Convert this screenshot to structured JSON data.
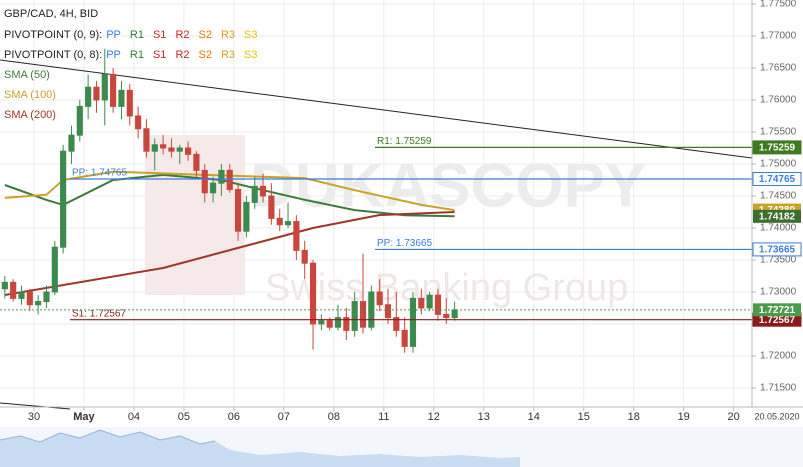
{
  "chart_data": {
    "type": "candlestick",
    "title": "GBP/CAD, 4H, BID",
    "watermark": {
      "brand": "DUKASCOPY",
      "tagline": "Swiss Banking Group"
    },
    "pivot_legend": [
      {
        "name": "PIVOTPOINT (0, 9):",
        "items": [
          {
            "name": "PP",
            "color": "#3b7dd8"
          },
          {
            "name": "R1",
            "color": "#2e7d32"
          },
          {
            "name": "S1",
            "color": "#c62828"
          },
          {
            "name": "R2",
            "color": "#c62828"
          },
          {
            "name": "S2",
            "color": "#e07b00"
          },
          {
            "name": "R3",
            "color": "#d4a017"
          },
          {
            "name": "S3",
            "color": "#e6c200"
          }
        ]
      },
      {
        "name": "PIVOTPOINT (0, 8):",
        "items": [
          {
            "name": "PP",
            "color": "#3b7dd8"
          },
          {
            "name": "R1",
            "color": "#2e7d32"
          },
          {
            "name": "S1",
            "color": "#c62828"
          },
          {
            "name": "R2",
            "color": "#c62828"
          },
          {
            "name": "S2",
            "color": "#e07b00"
          },
          {
            "name": "R3",
            "color": "#d4a017"
          },
          {
            "name": "S3",
            "color": "#e6c200"
          }
        ]
      }
    ],
    "up_color": "#3c8a4e",
    "down_color": "#c9463d",
    "ohlc": [
      [
        1.7305,
        1.7325,
        1.729,
        1.7315
      ],
      [
        1.7315,
        1.732,
        1.7285,
        1.729
      ],
      [
        1.729,
        1.731,
        1.728,
        1.73
      ],
      [
        1.73,
        1.7305,
        1.727,
        1.728
      ],
      [
        1.728,
        1.7295,
        1.7265,
        1.7285
      ],
      [
        1.7285,
        1.731,
        1.7275,
        1.73
      ],
      [
        1.73,
        1.738,
        1.7295,
        1.737
      ],
      [
        1.737,
        1.753,
        1.736,
        1.752
      ],
      [
        1.752,
        1.756,
        1.75,
        1.7545
      ],
      [
        1.7545,
        1.76,
        1.7535,
        1.759
      ],
      [
        1.759,
        1.764,
        1.757,
        1.762
      ],
      [
        1.762,
        1.763,
        1.758,
        1.76
      ],
      [
        1.76,
        1.768,
        1.756,
        1.764
      ],
      [
        1.764,
        1.765,
        1.758,
        1.759
      ],
      [
        1.759,
        1.763,
        1.757,
        1.7615
      ],
      [
        1.7615,
        1.7625,
        1.756,
        1.7575
      ],
      [
        1.7575,
        1.759,
        1.754,
        1.7555
      ],
      [
        1.7555,
        1.757,
        1.751,
        1.752
      ],
      [
        1.752,
        1.754,
        1.749,
        1.753
      ],
      [
        1.753,
        1.7545,
        1.7515,
        1.7525
      ],
      [
        1.7525,
        1.754,
        1.751,
        1.752
      ],
      [
        1.752,
        1.753,
        1.75,
        1.7525
      ],
      [
        1.7525,
        1.7535,
        1.7505,
        1.7515
      ],
      [
        1.7515,
        1.752,
        1.748,
        1.749
      ],
      [
        1.749,
        1.75,
        1.744,
        1.7455
      ],
      [
        1.7455,
        1.748,
        1.744,
        1.747
      ],
      [
        1.747,
        1.75,
        1.745,
        1.749
      ],
      [
        1.749,
        1.75,
        1.7455,
        1.746
      ],
      [
        1.746,
        1.747,
        1.738,
        1.7395
      ],
      [
        1.7395,
        1.745,
        1.7385,
        1.744
      ],
      [
        1.744,
        1.748,
        1.743,
        1.7465
      ],
      [
        1.7465,
        1.7485,
        1.744,
        1.745
      ],
      [
        1.745,
        1.747,
        1.7405,
        1.7415
      ],
      [
        1.7415,
        1.743,
        1.7395,
        1.7405
      ],
      [
        1.7405,
        1.744,
        1.74,
        1.741
      ],
      [
        1.741,
        1.742,
        1.735,
        1.7365
      ],
      [
        1.7365,
        1.738,
        1.732,
        1.7345
      ],
      [
        1.7345,
        1.735,
        1.721,
        1.725
      ],
      [
        1.725,
        1.7265,
        1.724,
        1.7255
      ],
      [
        1.7255,
        1.726,
        1.724,
        1.7245
      ],
      [
        1.7245,
        1.728,
        1.724,
        1.726
      ],
      [
        1.726,
        1.7275,
        1.7225,
        1.724
      ],
      [
        1.724,
        1.73,
        1.723,
        1.7285
      ],
      [
        1.7285,
        1.736,
        1.7235,
        1.7245
      ],
      [
        1.7245,
        1.731,
        1.724,
        1.73
      ],
      [
        1.73,
        1.732,
        1.727,
        1.728
      ],
      [
        1.728,
        1.7305,
        1.725,
        1.726
      ],
      [
        1.726,
        1.73,
        1.723,
        1.724
      ],
      [
        1.724,
        1.726,
        1.7205,
        1.7215
      ],
      [
        1.7215,
        1.73,
        1.7205,
        1.729
      ],
      [
        1.729,
        1.7305,
        1.7265,
        1.7275
      ],
      [
        1.7275,
        1.73,
        1.727,
        1.7295
      ],
      [
        1.7295,
        1.7305,
        1.7255,
        1.7265
      ],
      [
        1.7265,
        1.729,
        1.725,
        1.726
      ],
      [
        1.726,
        1.7285,
        1.7255,
        1.72721
      ]
    ],
    "series": [
      {
        "name": "SMA (50)",
        "color": "#3c7a3c",
        "x": [
          0,
          5,
          7,
          13,
          19,
          26,
          31,
          36,
          42,
          48,
          54
        ],
        "values": [
          1.74672,
          1.74438,
          1.7436,
          1.7475,
          1.7483,
          1.7475,
          1.7459,
          1.7444,
          1.7428,
          1.742,
          1.74182
        ]
      },
      {
        "name": "SMA (100)",
        "color": "#c9a227",
        "x": [
          0,
          5,
          7,
          13,
          24,
          36,
          42,
          50,
          54
        ],
        "values": [
          1.7447,
          1.7452,
          1.7475,
          1.7488,
          1.7483,
          1.7478,
          1.7459,
          1.7436,
          1.7428
        ]
      },
      {
        "name": "SMA (200)",
        "color": "#a0362a",
        "x": [
          0,
          19,
          28,
          37,
          45,
          54
        ],
        "values": [
          1.72953,
          1.73375,
          1.73688,
          1.74,
          1.74203,
          1.7425
        ]
      }
    ],
    "levels": [
      {
        "name": "R1: 1.75259",
        "value": 1.75259,
        "color": "#3d7a22"
      },
      {
        "name": "PP: 1.74765",
        "value": 1.74765,
        "color": "#3b7dd8",
        "outline": true
      },
      {
        "name": "PP: 1.73665",
        "value": 1.73665,
        "color": "#3b7dd8",
        "outline": true
      },
      {
        "name": "S1: 1.72567",
        "value": 1.72567,
        "color": "#8b1a1a"
      }
    ],
    "price_tags": [
      {
        "value": {
          "value": 1.7428,
          "label": "1.74280"
        },
        "color": "#c9a227"
      },
      {
        "value": 1.74182,
        "color": "#3c6e2e"
      },
      {
        "value": 1.72721,
        "color": "#4c9a4c",
        "dotted": true
      }
    ],
    "ylim": [
      1.71234,
      1.77562
    ],
    "yticks": [
      {
        "value": 1.715,
        "label": "1.71500"
      },
      {
        "value": 1.72,
        "label": "1.72000"
      },
      {
        "value": 1.725,
        "label": "1.72500"
      },
      {
        "value": 1.73,
        "label": "1.73000"
      },
      {
        "value": 1.735,
        "label": "1.73500"
      },
      {
        "value": 1.74,
        "label": "1.74000"
      },
      {
        "value": 1.745,
        "label": "1.74500"
      },
      {
        "value": 1.75,
        "label": "1.75000"
      },
      {
        "value": 1.755,
        "label": "1.75500"
      },
      {
        "value": 1.76,
        "label": "1.76000"
      },
      {
        "value": 1.765,
        "label": "1.76500"
      },
      {
        "value": 1.77,
        "label": "1.77000"
      },
      {
        "value": 1.775,
        "label": "1.77500"
      }
    ],
    "xlim": [
      -0.58,
      89.7
    ],
    "xticks": [
      {
        "value": 3.5,
        "label": "30"
      },
      {
        "value": 9.5,
        "label": "May"
      },
      {
        "value": 15.5,
        "label": "04"
      },
      {
        "value": 21.5,
        "label": "05"
      },
      {
        "value": 27.5,
        "label": "06"
      },
      {
        "value": 33.5,
        "label": "07"
      },
      {
        "value": 39.5,
        "label": "08"
      },
      {
        "value": 45.5,
        "label": "11"
      },
      {
        "value": 51.5,
        "label": "12"
      },
      {
        "value": 57.5,
        "label": "13"
      },
      {
        "value": 63.5,
        "label": "14"
      },
      {
        "value": 69.5,
        "label": "15"
      },
      {
        "value": 75.5,
        "label": "18"
      },
      {
        "value": 81.5,
        "label": "19"
      },
      {
        "value": 87.5,
        "label": "20"
      }
    ],
    "date_label": "20.05.2020",
    "grid": true
  }
}
